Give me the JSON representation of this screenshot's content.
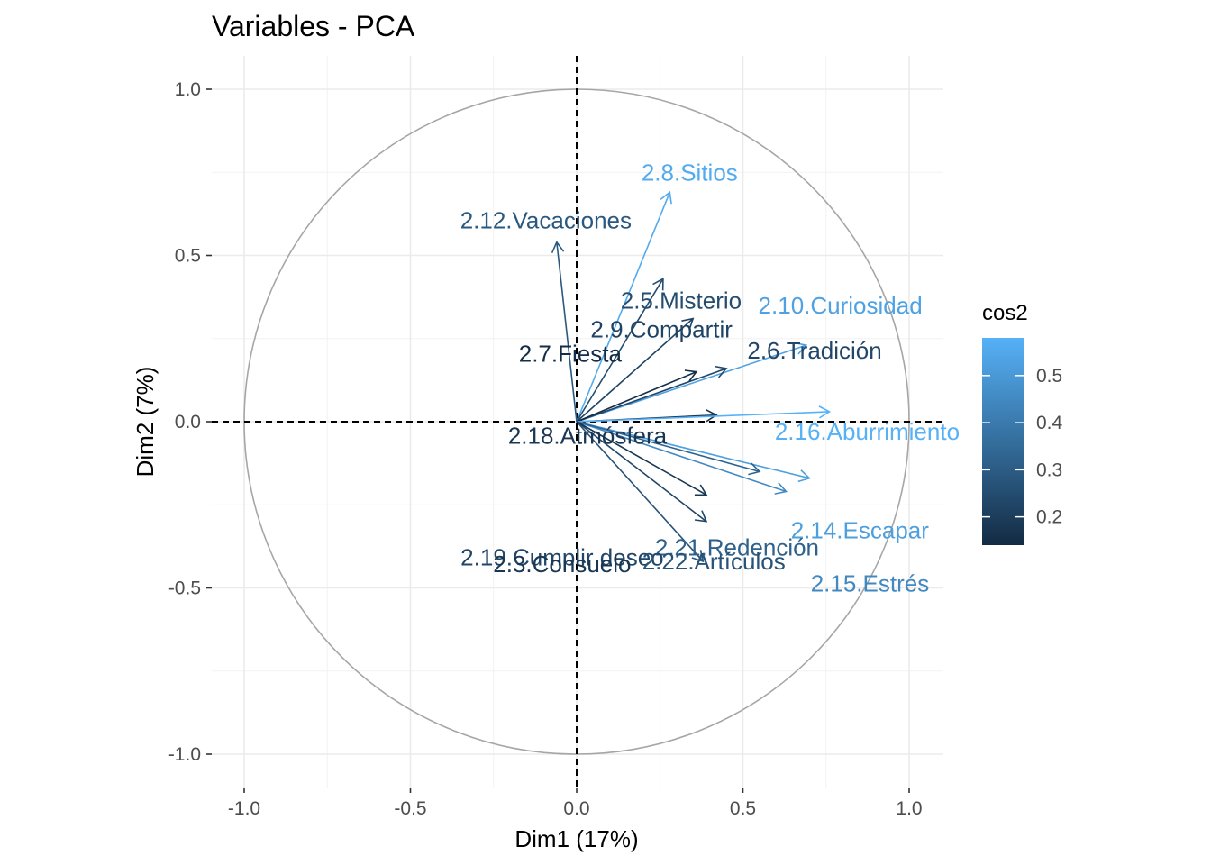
{
  "chart_data": {
    "type": "scatter",
    "subtype": "pca-variable-correlation-circle",
    "title": "Variables - PCA",
    "xlabel": "Dim1 (17%)",
    "ylabel": "Dim2 (7%)",
    "xlim": [
      -1.1,
      1.1
    ],
    "ylim": [
      -1.1,
      1.1
    ],
    "xticks": [
      -1.0,
      -0.5,
      0.0,
      0.5,
      1.0
    ],
    "xtick_labels": [
      "-1.0",
      "-0.5",
      "0.0",
      "0.5",
      "1.0"
    ],
    "yticks": [
      -1.0,
      -0.5,
      0.0,
      0.5,
      1.0
    ],
    "ytick_labels": [
      "-1.0",
      "-0.5",
      "0.0",
      "0.5",
      "1.0"
    ],
    "grid": true,
    "legend_position": "right",
    "color_scale": {
      "title": "cos2",
      "min": 0.14,
      "max": 0.58,
      "low_color": "#132B43",
      "high_color": "#56B1F7",
      "ticks": [
        0.2,
        0.3,
        0.4,
        0.5
      ],
      "tick_labels": [
        "0.2",
        "0.3",
        "0.4",
        "0.5"
      ]
    },
    "variables": [
      {
        "label": "2.8.Sitios",
        "x": 0.28,
        "y": 0.69,
        "cos2": 0.56
      },
      {
        "label": "2.12.Vacaciones",
        "x": -0.06,
        "y": 0.54,
        "cos2": 0.29
      },
      {
        "label": "2.5.Misterio",
        "x": 0.26,
        "y": 0.43,
        "cos2": 0.25
      },
      {
        "label": "2.10.Curiosidad",
        "x": 0.69,
        "y": 0.23,
        "cos2": 0.53
      },
      {
        "label": "2.9.Compartir",
        "x": 0.35,
        "y": 0.31,
        "cos2": 0.22
      },
      {
        "label": "2.6.Tradición",
        "x": 0.45,
        "y": 0.16,
        "cos2": 0.23
      },
      {
        "label": "2.7.Fiesta",
        "x": 0.36,
        "y": 0.15,
        "cos2": 0.15
      },
      {
        "label": "2.18.Atmósfera",
        "x": 0.42,
        "y": 0.02,
        "cos2": 0.18
      },
      {
        "label": "2.16.Aburrimiento",
        "x": 0.76,
        "y": 0.03,
        "cos2": 0.58
      },
      {
        "label": "2.14.Escapar",
        "x": 0.7,
        "y": -0.17,
        "cos2": 0.52
      },
      {
        "label": "2.15.Estrés",
        "x": 0.63,
        "y": -0.21,
        "cos2": 0.45
      },
      {
        "label": "2.21.Redención",
        "x": 0.55,
        "y": -0.15,
        "cos2": 0.32
      },
      {
        "label": "2.19.Cumplir deseo",
        "x": 0.39,
        "y": -0.3,
        "cos2": 0.23
      },
      {
        "label": "2.22.Artículos",
        "x": 0.38,
        "y": -0.42,
        "cos2": 0.27
      },
      {
        "label": "2.3.Consuelo",
        "x": 0.39,
        "y": -0.22,
        "cos2": 0.18
      }
    ]
  }
}
